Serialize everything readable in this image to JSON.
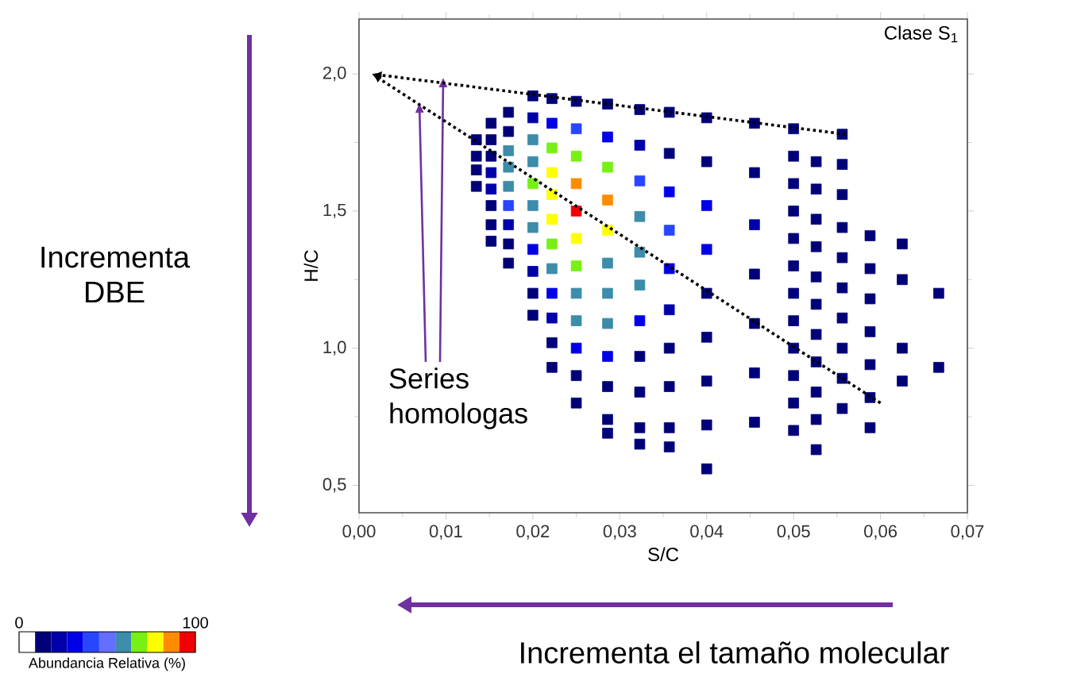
{
  "chart_data": {
    "type": "scatter",
    "xlabel": "S/C",
    "ylabel": "H/C",
    "clabel": "Abundancia Relativa (%)",
    "annotations": [
      "Clase S$_{1}$",
      "Incrementa DBE",
      "Series homologas",
      "Incrementa el tamaño molecular"
    ],
    "xlim": [
      0,
      0.07
    ],
    "ylim": [
      0.4,
      2.2
    ],
    "xticks": [
      {
        "value": 0,
        "label": "0,00"
      },
      {
        "value": 0.01,
        "label": "0,01"
      },
      {
        "value": 0.02,
        "label": "0,02"
      },
      {
        "value": 0.03,
        "label": "0,03"
      },
      {
        "value": 0.04,
        "label": "0,04"
      },
      {
        "value": 0.05,
        "label": "0,05"
      },
      {
        "value": 0.06,
        "label": "0,06"
      },
      {
        "value": 0.07,
        "label": "0,07"
      }
    ],
    "yticks": [
      {
        "value": 0.5,
        "label": "0,5"
      },
      {
        "value": 1.0,
        "label": "1,0"
      },
      {
        "value": 1.5,
        "label": "1,5"
      },
      {
        "value": 2.0,
        "label": "2,0"
      }
    ],
    "clim": [
      0,
      100
    ],
    "cticks": [
      0,
      100
    ],
    "marker": "square",
    "x": [
      0.0667,
      0.0667,
      0.0625,
      0.0625,
      0.0625,
      0.0625,
      0.0588,
      0.0588,
      0.0588,
      0.0588,
      0.0588,
      0.0588,
      0.0588,
      0.0556,
      0.0556,
      0.0556,
      0.0556,
      0.0556,
      0.0556,
      0.0556,
      0.0556,
      0.0556,
      0.0556,
      0.0526,
      0.0526,
      0.0526,
      0.0526,
      0.0526,
      0.0526,
      0.0526,
      0.0526,
      0.0526,
      0.0526,
      0.0526,
      0.05,
      0.05,
      0.05,
      0.05,
      0.05,
      0.05,
      0.05,
      0.05,
      0.05,
      0.05,
      0.05,
      0.05,
      0.0455,
      0.0455,
      0.0455,
      0.0455,
      0.0455,
      0.0455,
      0.0455,
      0.04,
      0.04,
      0.04,
      0.04,
      0.04,
      0.04,
      0.04,
      0.04,
      0.04,
      0.0357,
      0.0357,
      0.0357,
      0.0357,
      0.0357,
      0.0357,
      0.0357,
      0.0357,
      0.0357,
      0.0357,
      0.0323,
      0.0323,
      0.0323,
      0.0323,
      0.0323,
      0.0323,
      0.0323,
      0.0323,
      0.0323,
      0.0323,
      0.0323,
      0.0286,
      0.0286,
      0.0286,
      0.0286,
      0.0286,
      0.0286,
      0.0286,
      0.0286,
      0.0286,
      0.0286,
      0.0286,
      0.0286,
      0.025,
      0.025,
      0.025,
      0.025,
      0.025,
      0.025,
      0.025,
      0.025,
      0.025,
      0.025,
      0.025,
      0.025,
      0.0222,
      0.0222,
      0.0222,
      0.0222,
      0.0222,
      0.0222,
      0.0222,
      0.0222,
      0.0222,
      0.0222,
      0.0222,
      0.0222,
      0.02,
      0.02,
      0.02,
      0.02,
      0.02,
      0.02,
      0.02,
      0.02,
      0.02,
      0.02,
      0.02,
      0.0172,
      0.0172,
      0.0172,
      0.0172,
      0.0172,
      0.0172,
      0.0172,
      0.0172,
      0.0172,
      0.0152,
      0.0152,
      0.0152,
      0.0152,
      0.0152,
      0.0152,
      0.0152,
      0.0152,
      0.0135,
      0.0135,
      0.0135,
      0.0135
    ],
    "values": [
      1.2,
      0.93,
      1.38,
      1.25,
      1.0,
      0.88,
      1.41,
      1.29,
      1.18,
      1.06,
      0.94,
      0.82,
      0.71,
      1.78,
      1.67,
      1.56,
      1.44,
      1.33,
      1.22,
      1.11,
      1.0,
      0.89,
      0.78,
      1.68,
      1.58,
      1.47,
      1.37,
      1.26,
      1.16,
      1.05,
      0.95,
      0.84,
      0.74,
      0.63,
      1.8,
      1.7,
      1.6,
      1.5,
      1.4,
      1.3,
      1.2,
      1.1,
      1.0,
      0.9,
      0.8,
      0.7,
      1.82,
      1.64,
      1.45,
      1.27,
      1.09,
      0.91,
      0.73,
      1.84,
      1.68,
      1.52,
      1.36,
      1.2,
      1.04,
      0.88,
      0.72,
      0.56,
      1.86,
      1.71,
      1.57,
      1.43,
      1.29,
      1.14,
      1.0,
      0.86,
      0.71,
      0.64,
      1.87,
      1.74,
      1.61,
      1.48,
      1.35,
      1.23,
      1.1,
      0.97,
      0.84,
      0.71,
      0.65,
      1.89,
      1.77,
      1.66,
      1.54,
      1.43,
      1.31,
      1.2,
      1.09,
      0.97,
      0.86,
      0.74,
      0.69,
      1.9,
      1.8,
      1.7,
      1.6,
      1.5,
      1.4,
      1.3,
      1.2,
      1.1,
      1.0,
      0.9,
      0.8,
      1.91,
      1.82,
      1.73,
      1.64,
      1.56,
      1.47,
      1.38,
      1.29,
      1.2,
      1.11,
      1.02,
      0.93,
      1.92,
      1.84,
      1.76,
      1.68,
      1.6,
      1.52,
      1.44,
      1.36,
      1.28,
      1.2,
      1.12,
      1.86,
      1.79,
      1.72,
      1.66,
      1.59,
      1.52,
      1.45,
      1.38,
      1.31,
      1.82,
      1.76,
      1.7,
      1.64,
      1.58,
      1.52,
      1.45,
      1.39,
      1.76,
      1.7,
      1.65,
      1.59
    ],
    "cvalues": [
      12,
      12,
      12,
      12,
      12,
      12,
      12,
      12,
      12,
      12,
      12,
      12,
      12,
      12,
      12,
      12,
      12,
      12,
      12,
      12,
      12,
      12,
      12,
      12,
      12,
      12,
      12,
      12,
      12,
      12,
      12,
      12,
      12,
      12,
      12,
      12,
      12,
      12,
      12,
      12,
      12,
      12,
      12,
      12,
      12,
      12,
      12,
      12,
      22,
      12,
      12,
      12,
      12,
      12,
      12,
      30,
      30,
      12,
      12,
      12,
      12,
      12,
      12,
      12,
      35,
      40,
      30,
      22,
      12,
      12,
      12,
      12,
      12,
      22,
      45,
      58,
      58,
      58,
      30,
      15,
      12,
      12,
      12,
      12,
      30,
      68,
      88,
      78,
      60,
      58,
      58,
      30,
      15,
      12,
      12,
      12,
      45,
      70,
      85,
      95,
      80,
      68,
      58,
      58,
      30,
      15,
      12,
      12,
      30,
      66,
      75,
      78,
      80,
      68,
      58,
      30,
      22,
      15,
      12,
      12,
      22,
      58,
      60,
      68,
      60,
      58,
      30,
      22,
      15,
      12,
      12,
      15,
      58,
      58,
      58,
      45,
      22,
      15,
      12,
      12,
      12,
      12,
      22,
      22,
      12,
      12,
      12,
      12,
      12,
      12,
      12
    ]
  }
}
